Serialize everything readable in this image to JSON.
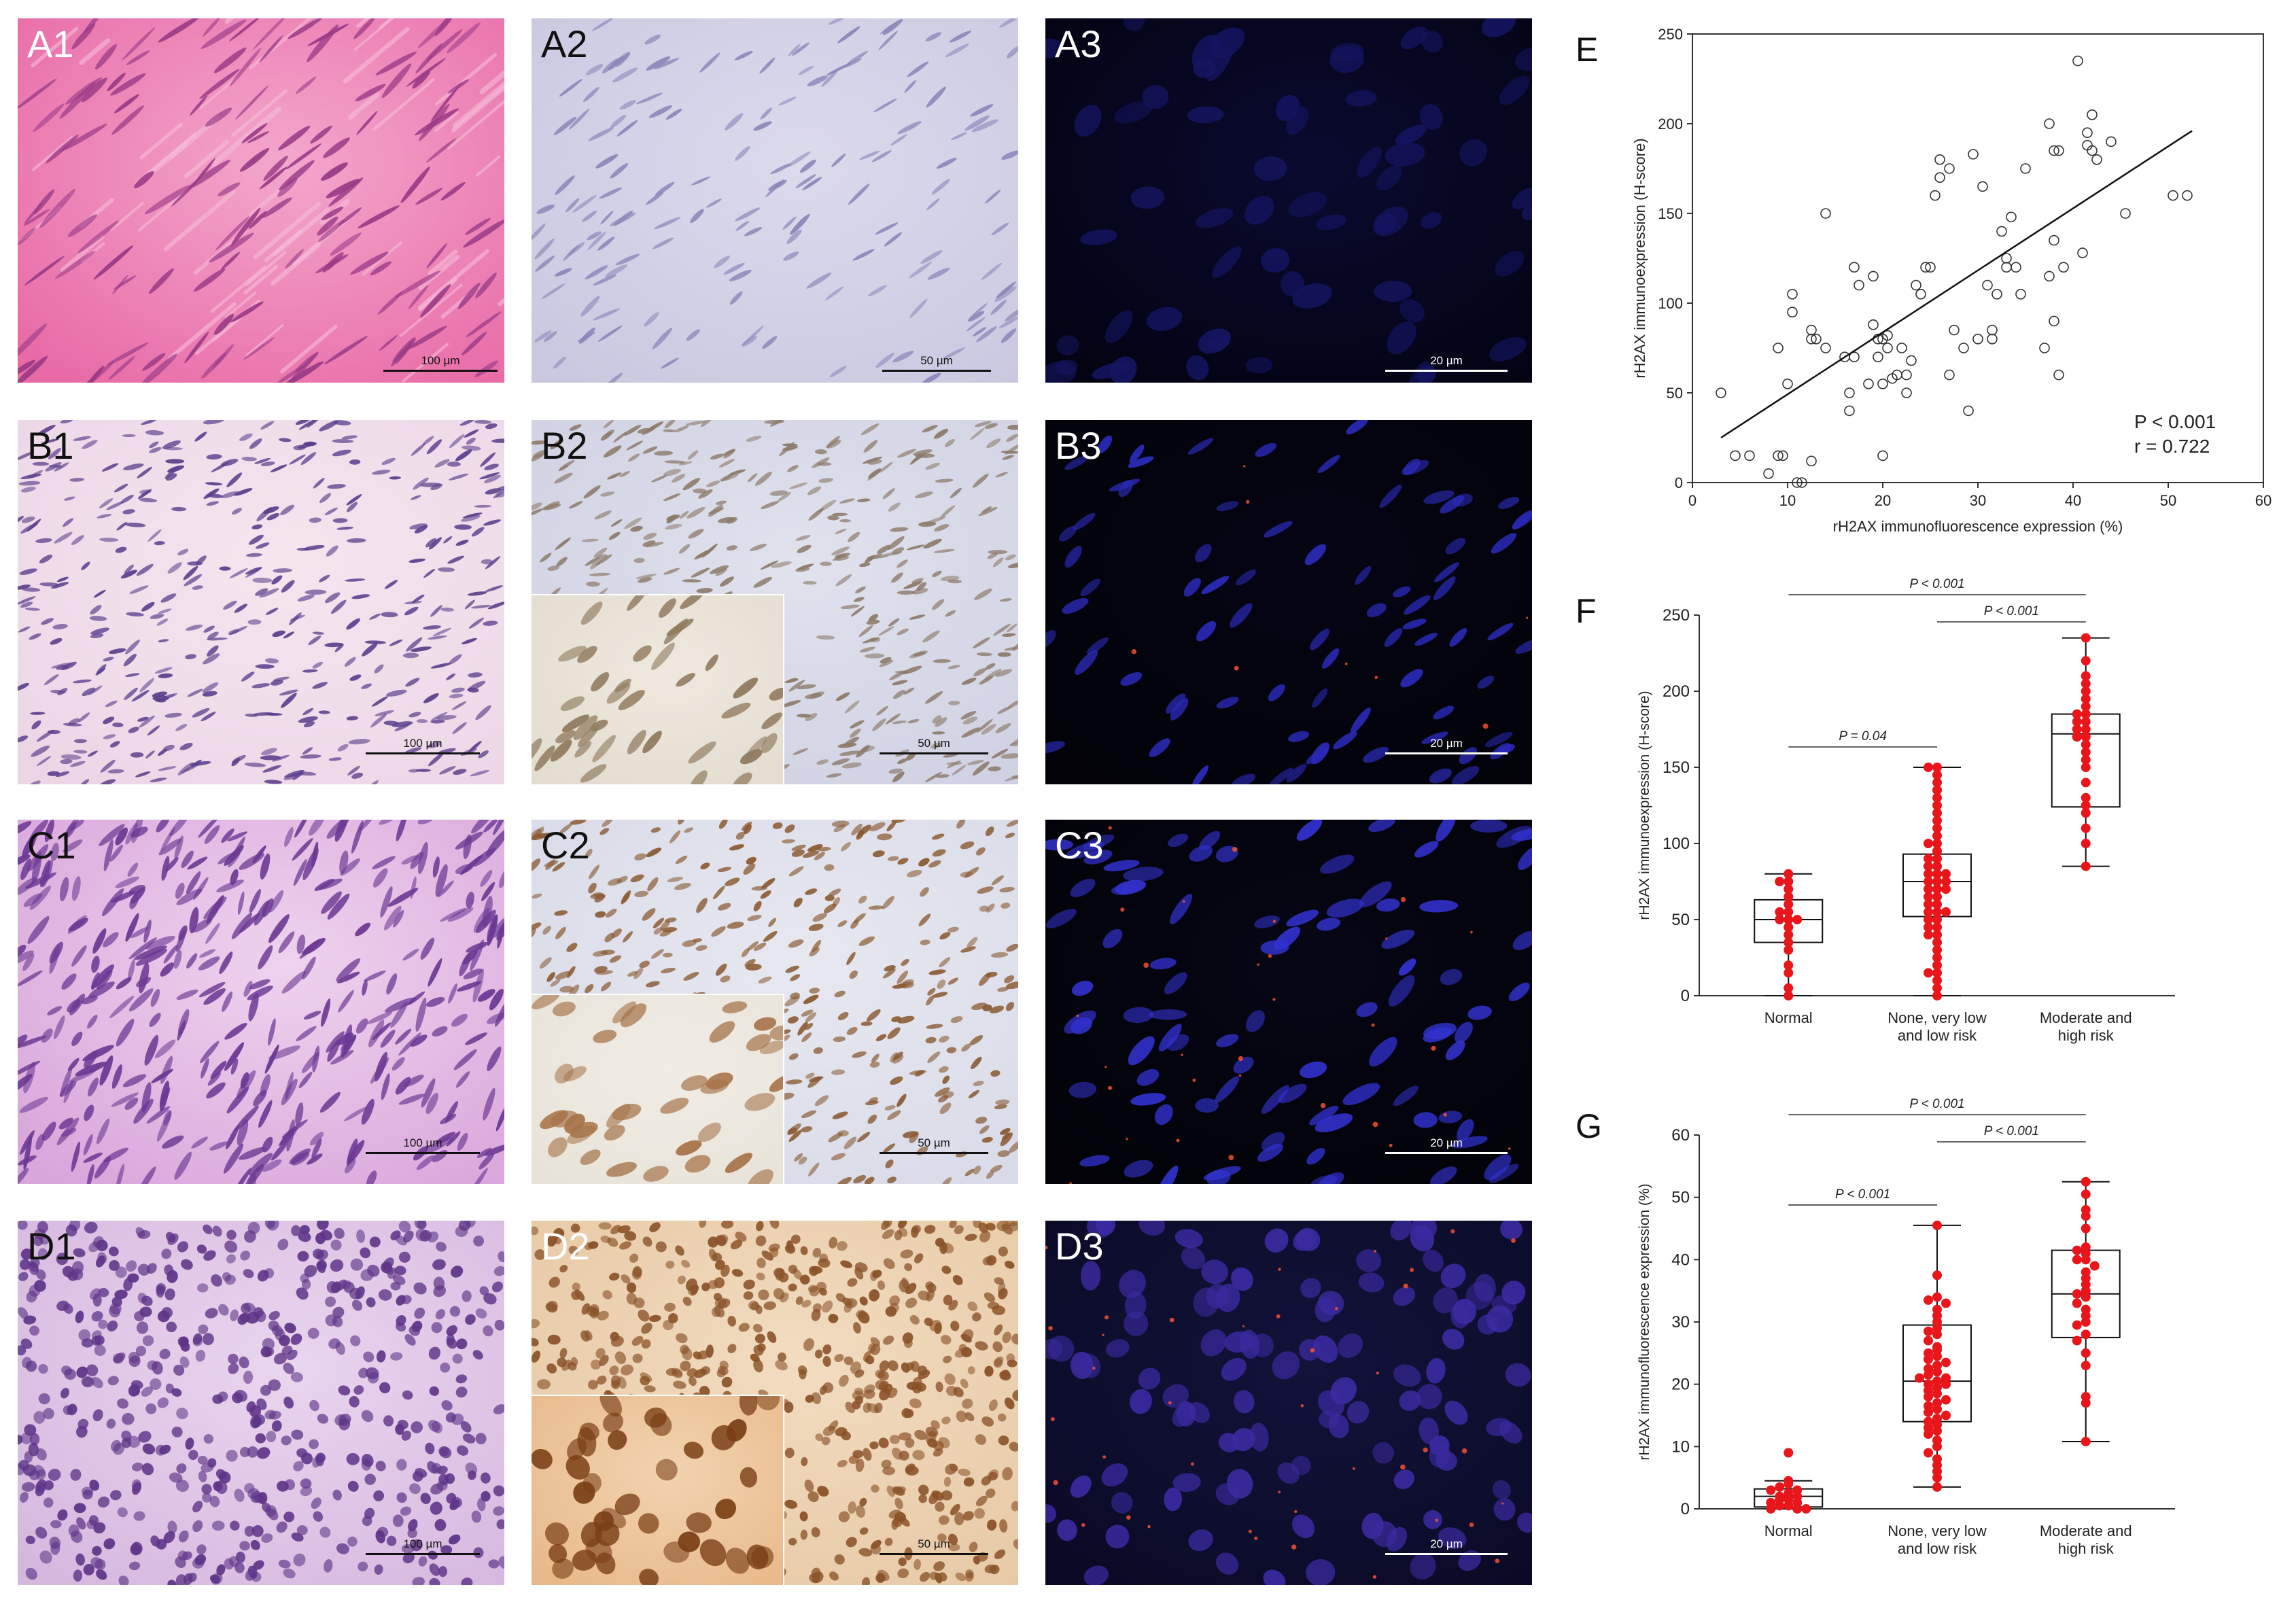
{
  "panels": {
    "A1": {
      "label": "A1",
      "scale": "100 µm"
    },
    "A2": {
      "label": "A2",
      "scale": "50 µm"
    },
    "A3": {
      "label": "A3",
      "scale": "20 µm"
    },
    "B1": {
      "label": "B1",
      "scale": "100 µm"
    },
    "B2": {
      "label": "B2",
      "scale": "50 µm"
    },
    "B3": {
      "label": "B3",
      "scale": "20 µm"
    },
    "C1": {
      "label": "C1",
      "scale": "100 µm"
    },
    "C2": {
      "label": "C2",
      "scale": "50 µm"
    },
    "C3": {
      "label": "C3",
      "scale": "20 µm"
    },
    "D1": {
      "label": "D1",
      "scale": "100 µm"
    },
    "D2": {
      "label": "D2",
      "scale": "50 µm"
    },
    "D3": {
      "label": "D3",
      "scale": "20 µm"
    }
  },
  "colors": {
    "he_pink": "#e86aa6",
    "he_purple": "#b583c9",
    "ihc_bg": "#c9c8e0",
    "ihc_brown": "#8a5228",
    "if_bg": "#030312",
    "if_blue": "#2a2ab8",
    "if_red": "#ff5533",
    "dot_red": "#e8161b"
  },
  "chart_data": [
    {
      "id": "E",
      "label": "E",
      "type": "scatter",
      "xlabel": "rH2AX immunofluorescence expression (%)",
      "ylabel": "rH2AX immunoexpression (H-score)",
      "xlim": [
        0,
        60
      ],
      "ylim": [
        0,
        250
      ],
      "xticks": [
        "0",
        "10",
        "20",
        "30",
        "40",
        "50",
        "60"
      ],
      "yticks": [
        "0",
        "50",
        "100",
        "150",
        "200",
        "250"
      ],
      "annotation_p": "P < 0.001",
      "annotation_r": "r = 0.722",
      "trendline": {
        "x": [
          3,
          52.5
        ],
        "y": [
          25,
          196
        ]
      },
      "points": [
        [
          3,
          50
        ],
        [
          4.5,
          15
        ],
        [
          6,
          15
        ],
        [
          8,
          5
        ],
        [
          9,
          15
        ],
        [
          9,
          75
        ],
        [
          9.5,
          15
        ],
        [
          10,
          55
        ],
        [
          10.5,
          95
        ],
        [
          10.5,
          105
        ],
        [
          11,
          0
        ],
        [
          11.5,
          0
        ],
        [
          12.5,
          12
        ],
        [
          12.5,
          80
        ],
        [
          12.5,
          85
        ],
        [
          13,
          80
        ],
        [
          14,
          75
        ],
        [
          14,
          150
        ],
        [
          16,
          70
        ],
        [
          16.5,
          50
        ],
        [
          16.5,
          40
        ],
        [
          17,
          70
        ],
        [
          17,
          120
        ],
        [
          17.5,
          110
        ],
        [
          18.5,
          55
        ],
        [
          19,
          88
        ],
        [
          19,
          115
        ],
        [
          19.5,
          80
        ],
        [
          19.5,
          70
        ],
        [
          20,
          55
        ],
        [
          20,
          80
        ],
        [
          20,
          15
        ],
        [
          20.5,
          75
        ],
        [
          20.5,
          82
        ],
        [
          21,
          58
        ],
        [
          21.5,
          60
        ],
        [
          22,
          75
        ],
        [
          22.5,
          50
        ],
        [
          22.5,
          60
        ],
        [
          23,
          68
        ],
        [
          23.5,
          110
        ],
        [
          24,
          105
        ],
        [
          24.5,
          120
        ],
        [
          25,
          120
        ],
        [
          25.5,
          160
        ],
        [
          26,
          170
        ],
        [
          26,
          180
        ],
        [
          27,
          175
        ],
        [
          27,
          60
        ],
        [
          27.5,
          85
        ],
        [
          28.5,
          75
        ],
        [
          29,
          40
        ],
        [
          29.5,
          183
        ],
        [
          30,
          80
        ],
        [
          30.5,
          165
        ],
        [
          31,
          110
        ],
        [
          31.5,
          85
        ],
        [
          31.5,
          80
        ],
        [
          32,
          105
        ],
        [
          32.5,
          140
        ],
        [
          33,
          120
        ],
        [
          33,
          125
        ],
        [
          33.5,
          148
        ],
        [
          34,
          120
        ],
        [
          34.5,
          105
        ],
        [
          35,
          175
        ],
        [
          37,
          75
        ],
        [
          37.5,
          115
        ],
        [
          37.5,
          200
        ],
        [
          38,
          135
        ],
        [
          38,
          90
        ],
        [
          38.5,
          60
        ],
        [
          38,
          185
        ],
        [
          38.5,
          185
        ],
        [
          39,
          120
        ],
        [
          40.5,
          235
        ],
        [
          41,
          128
        ],
        [
          41.5,
          188
        ],
        [
          41.5,
          195
        ],
        [
          42,
          185
        ],
        [
          42,
          205
        ],
        [
          42.5,
          180
        ],
        [
          44,
          190
        ],
        [
          45.5,
          150
        ],
        [
          50.5,
          160
        ],
        [
          52,
          160
        ]
      ]
    },
    {
      "id": "F",
      "label": "F",
      "type": "box",
      "ylabel": "rH2AX immunoexpression (H-score)",
      "ylim": [
        0,
        250
      ],
      "yticks": [
        "0",
        "50",
        "100",
        "150",
        "200",
        "250"
      ],
      "categories": [
        "Normal",
        "None, very low\nand low risk",
        "Moderate and\nhigh risk"
      ],
      "boxes": [
        {
          "min": 0,
          "q1": 35,
          "median": 50,
          "q3": 63,
          "max": 80
        },
        {
          "min": 0,
          "q1": 52,
          "median": 75,
          "q3": 93,
          "max": 150
        },
        {
          "min": 85,
          "q1": 124,
          "median": 172,
          "q3": 185,
          "max": 235
        }
      ],
      "comparisons": [
        {
          "from": 0,
          "to": 2,
          "text": "P < 0.001"
        },
        {
          "from": 1,
          "to": 2,
          "text": "P < 0.001"
        },
        {
          "from": 0,
          "to": 1,
          "text": "P = 0.04"
        }
      ],
      "points": [
        [
          0,
          80,
          75,
          75,
          70,
          65,
          60,
          55,
          55,
          50,
          50,
          50,
          45,
          40,
          35,
          30,
          20,
          15,
          5
        ],
        [
          150,
          150,
          145,
          140,
          135,
          130,
          125,
          120,
          115,
          110,
          105,
          100,
          100,
          95,
          90,
          90,
          85,
          85,
          80,
          80,
          80,
          75,
          75,
          75,
          70,
          70,
          70,
          65,
          65,
          60,
          60,
          55,
          55,
          55,
          50,
          50,
          45,
          45,
          40,
          40,
          35,
          30,
          25,
          20,
          15,
          15,
          10,
          5,
          0
        ],
        [
          235,
          220,
          210,
          205,
          200,
          195,
          190,
          185,
          185,
          180,
          180,
          175,
          175,
          170,
          170,
          165,
          160,
          155,
          150,
          140,
          130,
          125,
          120,
          110,
          100,
          85
        ]
      ]
    },
    {
      "id": "G",
      "label": "G",
      "type": "box",
      "ylabel": "rH2AX immunofluorescence expression (%)",
      "ylim": [
        0,
        60
      ],
      "yticks": [
        "0",
        "10",
        "20",
        "30",
        "40",
        "50",
        "60"
      ],
      "categories": [
        "Normal",
        "None, very low\nand low risk",
        "Moderate and\nhigh risk"
      ],
      "boxes": [
        {
          "min": 0,
          "q1": 0.3,
          "median": 2,
          "q3": 3.2,
          "max": 4.5
        },
        {
          "min": 3.5,
          "q1": 14,
          "median": 20.5,
          "q3": 29.5,
          "max": 45.5
        },
        {
          "min": 10.8,
          "q1": 27.5,
          "median": 34.5,
          "q3": 41.5,
          "max": 52.5
        }
      ],
      "comparisons": [
        {
          "from": 0,
          "to": 2,
          "text": "P < 0.001"
        },
        {
          "from": 1,
          "to": 2,
          "text": "P < 0.001"
        },
        {
          "from": 0,
          "to": 1,
          "text": "P < 0.001"
        }
      ],
      "points": [
        [
          9,
          4.5,
          4,
          3.5,
          3,
          3,
          2.5,
          2,
          2,
          1.5,
          1.5,
          1,
          1,
          0.5,
          0.5,
          0,
          0,
          0
        ],
        [
          45.5,
          37.5,
          34,
          33.5,
          33,
          32,
          31,
          30,
          29,
          28.5,
          28,
          27,
          26,
          25.5,
          25,
          24.5,
          24,
          23.5,
          23,
          22.5,
          22,
          21.5,
          21,
          21,
          20.5,
          20,
          20,
          19.5,
          19,
          18.5,
          18,
          17.5,
          17,
          16.5,
          16,
          15.5,
          15,
          14.5,
          14,
          13.5,
          13,
          12.5,
          12,
          11,
          10,
          9,
          8,
          7,
          6,
          5,
          3.5
        ],
        [
          52.5,
          50.5,
          48,
          47,
          45,
          42,
          41.5,
          41,
          40,
          40,
          39,
          38,
          37,
          36,
          35,
          34.5,
          34,
          33,
          32,
          31,
          30,
          29.5,
          28,
          27,
          25,
          23,
          18,
          17,
          10.8
        ]
      ]
    }
  ]
}
